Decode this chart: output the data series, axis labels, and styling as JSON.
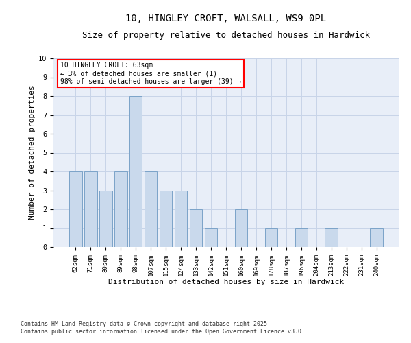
{
  "title_line1": "10, HINGLEY CROFT, WALSALL, WS9 0PL",
  "title_line2": "Size of property relative to detached houses in Hardwick",
  "xlabel": "Distribution of detached houses by size in Hardwick",
  "ylabel": "Number of detached properties",
  "categories": [
    "62sqm",
    "71sqm",
    "80sqm",
    "89sqm",
    "98sqm",
    "107sqm",
    "115sqm",
    "124sqm",
    "133sqm",
    "142sqm",
    "151sqm",
    "160sqm",
    "169sqm",
    "178sqm",
    "187sqm",
    "196sqm",
    "204sqm",
    "213sqm",
    "222sqm",
    "231sqm",
    "240sqm"
  ],
  "values": [
    4,
    4,
    3,
    4,
    8,
    4,
    3,
    3,
    2,
    1,
    0,
    2,
    0,
    1,
    0,
    1,
    0,
    1,
    0,
    0,
    1
  ],
  "bar_color": "#c9d9ec",
  "bar_edgecolor": "#7ba3c8",
  "annotation_box_text": "10 HINGLEY CROFT: 63sqm\n← 3% of detached houses are smaller (1)\n98% of semi-detached houses are larger (39) →",
  "ylim": [
    0,
    10
  ],
  "yticks": [
    0,
    1,
    2,
    3,
    4,
    5,
    6,
    7,
    8,
    9,
    10
  ],
  "grid_color": "#c8d4e8",
  "background_color": "#e8eef8",
  "footer_line1": "Contains HM Land Registry data © Crown copyright and database right 2025.",
  "footer_line2": "Contains public sector information licensed under the Open Government Licence v3.0.",
  "title_fontsize": 10,
  "subtitle_fontsize": 9,
  "axis_label_fontsize": 8,
  "tick_fontsize": 6.5,
  "annotation_fontsize": 7,
  "footer_fontsize": 6
}
